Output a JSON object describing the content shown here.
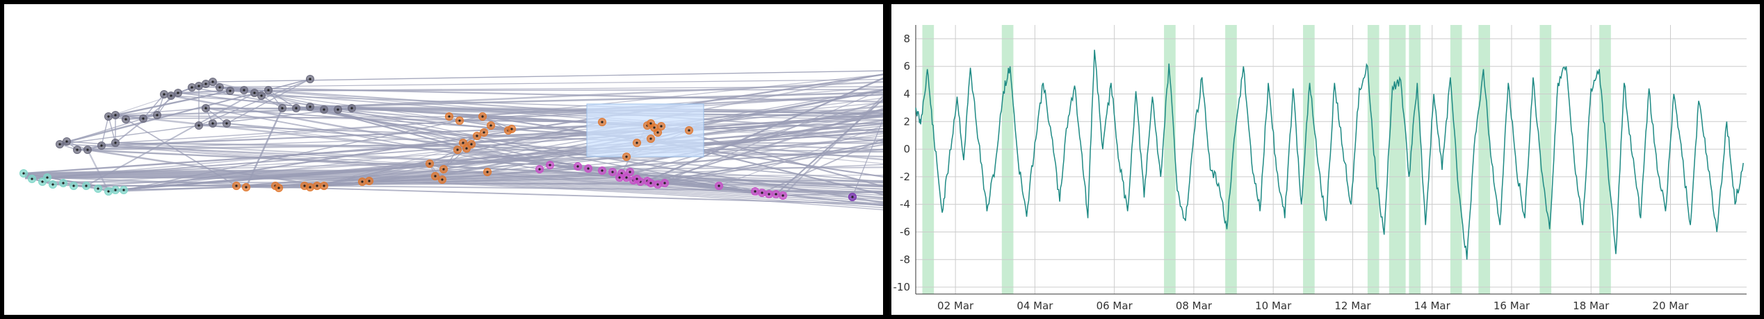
{
  "chart_data": [
    {
      "type": "scatter",
      "title": "",
      "axes": false,
      "edge_color": "#9a9db5",
      "clusters": [
        {
          "color": "#7fd6c8",
          "points": [
            [
              28,
              244
            ],
            [
              40,
              252
            ],
            [
              55,
              256
            ],
            [
              70,
              260
            ],
            [
              85,
              258
            ],
            [
              100,
              262
            ],
            [
              118,
              262
            ],
            [
              135,
              266
            ],
            [
              150,
              270
            ],
            [
              160,
              268
            ],
            [
              172,
              268
            ],
            [
              62,
              250
            ]
          ]
        },
        {
          "color": "#6b6b7e",
          "points": [
            [
              80,
              202
            ],
            [
              90,
              198
            ],
            [
              105,
              210
            ],
            [
              120,
              210
            ],
            [
              140,
              204
            ],
            [
              160,
              200
            ],
            [
              150,
              162
            ],
            [
              160,
              160
            ],
            [
              175,
              166
            ],
            [
              200,
              165
            ],
            [
              220,
              160
            ],
            [
              230,
              130
            ],
            [
              240,
              132
            ],
            [
              250,
              128
            ],
            [
              270,
              120
            ],
            [
              280,
              118
            ],
            [
              290,
              115
            ],
            [
              300,
              112
            ],
            [
              310,
              120
            ],
            [
              325,
              125
            ],
            [
              345,
              124
            ],
            [
              360,
              128
            ],
            [
              370,
              132
            ],
            [
              380,
              124
            ],
            [
              400,
              150
            ],
            [
              420,
              150
            ],
            [
              440,
              148
            ],
            [
              460,
              152
            ],
            [
              480,
              152
            ],
            [
              500,
              150
            ],
            [
              290,
              150
            ],
            [
              300,
              172
            ],
            [
              320,
              172
            ],
            [
              280,
              175
            ],
            [
              440,
              108
            ]
          ]
        },
        {
          "color": "#e0772e",
          "points": [
            [
              334,
              262
            ],
            [
              348,
              264
            ],
            [
              390,
              262
            ],
            [
              395,
              265
            ],
            [
              432,
              262
            ],
            [
              440,
              264
            ],
            [
              450,
              262
            ],
            [
              460,
              262
            ],
            [
              515,
              256
            ],
            [
              525,
              255
            ],
            [
              620,
              248
            ],
            [
              630,
              253
            ],
            [
              612,
              230
            ],
            [
              632,
              238
            ],
            [
              652,
              210
            ],
            [
              665,
              208
            ],
            [
              672,
              202
            ],
            [
              680,
              190
            ],
            [
              660,
              200
            ],
            [
              690,
              185
            ],
            [
              700,
              175
            ],
            [
              725,
              182
            ],
            [
              730,
              180
            ],
            [
              688,
              162
            ],
            [
              655,
              168
            ],
            [
              640,
              162
            ],
            [
              860,
              170
            ],
            [
              925,
              175
            ],
            [
              930,
              172
            ],
            [
              935,
              178
            ],
            [
              945,
              176
            ],
            [
              940,
              185
            ],
            [
              930,
              194
            ],
            [
              910,
              200
            ],
            [
              985,
              182
            ],
            [
              895,
              220
            ],
            [
              695,
              242
            ]
          ]
        },
        {
          "color": "#c84ec8",
          "points": [
            [
              770,
              238
            ],
            [
              785,
              232
            ],
            [
              825,
              234
            ],
            [
              840,
              237
            ],
            [
              860,
              240
            ],
            [
              875,
              242
            ],
            [
              888,
              244
            ],
            [
              895,
              250
            ],
            [
              905,
              254
            ],
            [
              915,
              256
            ],
            [
              925,
              255
            ],
            [
              930,
              258
            ],
            [
              940,
              260
            ],
            [
              950,
              258
            ],
            [
              910,
              252
            ],
            [
              885,
              250
            ],
            [
              900,
              242
            ],
            [
              1028,
              262
            ],
            [
              1080,
              270
            ],
            [
              1090,
              272
            ],
            [
              1100,
              274
            ],
            [
              1110,
              274
            ],
            [
              1120,
              276
            ]
          ]
        },
        {
          "color": "#7a2fb0",
          "points": [
            [
              1220,
              278
            ]
          ]
        }
      ],
      "highlight_region": {
        "color": "#cfe3ff"
      }
    },
    {
      "type": "line",
      "title": "",
      "xlabel": "",
      "ylabel": "",
      "x_range": [
        "2023-03-01",
        "2023-03-21T22:00"
      ],
      "ylim": [
        -10.5,
        9
      ],
      "yticks": [
        -10,
        -8,
        -6,
        -4,
        -2,
        0,
        2,
        4,
        6,
        8
      ],
      "xticks": [
        {
          "date": "2023-03-02",
          "label": "02 Mar"
        },
        {
          "date": "2023-03-04",
          "label": "04 Mar"
        },
        {
          "date": "2023-03-06",
          "label": "06 Mar"
        },
        {
          "date": "2023-03-08",
          "label": "08 Mar"
        },
        {
          "date": "2023-03-10",
          "label": "10 Mar"
        },
        {
          "date": "2023-03-12",
          "label": "12 Mar"
        },
        {
          "date": "2023-03-14",
          "label": "14 Mar"
        },
        {
          "date": "2023-03-16",
          "label": "16 Mar"
        },
        {
          "date": "2023-03-18",
          "label": "18 Mar"
        },
        {
          "date": "2023-03-20",
          "label": "20 Mar"
        }
      ],
      "grid": true,
      "line_color": "#1e8a84",
      "band_color": "#c8ecd2",
      "highlight_bands": [
        [
          "2023-03-01T04:00",
          "2023-03-01T11:00"
        ],
        [
          "2023-03-03T04:00",
          "2023-03-03T11:00"
        ],
        [
          "2023-03-07T06:00",
          "2023-03-07T13:00"
        ],
        [
          "2023-03-08T19:00",
          "2023-03-09T02:00"
        ],
        [
          "2023-03-10T18:00",
          "2023-03-11T01:00"
        ],
        [
          "2023-03-12T09:00",
          "2023-03-12T16:00"
        ],
        [
          "2023-03-12T22:00",
          "2023-03-13T08:00"
        ],
        [
          "2023-03-13T10:00",
          "2023-03-13T17:00"
        ],
        [
          "2023-03-14T11:00",
          "2023-03-14T18:00"
        ],
        [
          "2023-03-15T04:00",
          "2023-03-15T11:00"
        ],
        [
          "2023-03-16T17:00",
          "2023-03-17T00:00"
        ],
        [
          "2023-03-18T05:00",
          "2023-03-18T12:00"
        ]
      ],
      "series": [
        {
          "values": [
            [
              "2023-03-01T00:00",
              3.0
            ],
            [
              "2023-03-01T03:00",
              1.8
            ],
            [
              "2023-03-01T07:00",
              5.8
            ],
            [
              "2023-03-01T11:00",
              0.8
            ],
            [
              "2023-03-01T16:00",
              -4.6
            ],
            [
              "2023-03-01T20:00",
              -1.0
            ],
            [
              "2023-03-02T01:00",
              3.8
            ],
            [
              "2023-03-02T05:00",
              -0.8
            ],
            [
              "2023-03-02T09:00",
              5.9
            ],
            [
              "2023-03-02T14:00",
              0.5
            ],
            [
              "2023-03-02T19:00",
              -4.5
            ],
            [
              "2023-03-03T00:00",
              -1.2
            ],
            [
              "2023-03-03T05:00",
              4.2
            ],
            [
              "2023-03-03T09:00",
              6.0
            ],
            [
              "2023-03-03T14:00",
              -1.0
            ],
            [
              "2023-03-03T19:00",
              -4.9
            ],
            [
              "2023-03-04T00:00",
              0.5
            ],
            [
              "2023-03-04T05:00",
              4.8
            ],
            [
              "2023-03-04T10:00",
              1.0
            ],
            [
              "2023-03-04T15:00",
              -3.8
            ],
            [
              "2023-03-04T19:00",
              1.5
            ],
            [
              "2023-03-05T00:00",
              4.6
            ],
            [
              "2023-03-05T04:00",
              0.0
            ],
            [
              "2023-03-05T08:00",
              -5.0
            ],
            [
              "2023-03-05T12:00",
              7.2
            ],
            [
              "2023-03-05T17:00",
              0.0
            ],
            [
              "2023-03-05T22:00",
              4.8
            ],
            [
              "2023-03-06T03:00",
              -1.0
            ],
            [
              "2023-03-06T08:00",
              -4.5
            ],
            [
              "2023-03-06T13:00",
              4.2
            ],
            [
              "2023-03-06T18:00",
              -3.5
            ],
            [
              "2023-03-06T23:00",
              3.8
            ],
            [
              "2023-03-07T04:00",
              -2.0
            ],
            [
              "2023-03-07T09:00",
              6.2
            ],
            [
              "2023-03-07T14:00",
              -3.0
            ],
            [
              "2023-03-07T19:00",
              -5.2
            ],
            [
              "2023-03-08T00:00",
              1.0
            ],
            [
              "2023-03-08T05:00",
              5.2
            ],
            [
              "2023-03-08T10:00",
              -1.5
            ],
            [
              "2023-03-08T15:00",
              -2.5
            ],
            [
              "2023-03-08T20:00",
              -5.8
            ],
            [
              "2023-03-09T01:00",
              1.2
            ],
            [
              "2023-03-09T06:00",
              6.0
            ],
            [
              "2023-03-09T11:00",
              -1.0
            ],
            [
              "2023-03-09T16:00",
              -4.5
            ],
            [
              "2023-03-09T21:00",
              4.8
            ],
            [
              "2023-03-10T02:00",
              -1.5
            ],
            [
              "2023-03-10T07:00",
              -5.0
            ],
            [
              "2023-03-10T12:00",
              4.4
            ],
            [
              "2023-03-10T17:00",
              -4.0
            ],
            [
              "2023-03-10T22:00",
              4.8
            ],
            [
              "2023-03-11T03:00",
              -1.0
            ],
            [
              "2023-03-11T08:00",
              -5.2
            ],
            [
              "2023-03-11T13:00",
              4.8
            ],
            [
              "2023-03-11T18:00",
              0.0
            ],
            [
              "2023-03-11T23:00",
              -4.0
            ],
            [
              "2023-03-12T04:00",
              4.4
            ],
            [
              "2023-03-12T09:00",
              6.0
            ],
            [
              "2023-03-12T14:00",
              -2.0
            ],
            [
              "2023-03-12T19:00",
              -6.2
            ],
            [
              "2023-03-13T00:00",
              4.5
            ],
            [
              "2023-03-13T05:00",
              5.0
            ],
            [
              "2023-03-13T10:00",
              -2.0
            ],
            [
              "2023-03-13T15:00",
              4.8
            ],
            [
              "2023-03-13T20:00",
              -5.5
            ],
            [
              "2023-03-14T01:00",
              4.0
            ],
            [
              "2023-03-14T06:00",
              -1.5
            ],
            [
              "2023-03-14T11:00",
              5.2
            ],
            [
              "2023-03-14T16:00",
              -3.0
            ],
            [
              "2023-03-14T21:00",
              -8.0
            ],
            [
              "2023-03-15T02:00",
              1.0
            ],
            [
              "2023-03-15T07:00",
              5.8
            ],
            [
              "2023-03-15T12:00",
              -1.0
            ],
            [
              "2023-03-15T17:00",
              -5.5
            ],
            [
              "2023-03-15T22:00",
              4.8
            ],
            [
              "2023-03-16T03:00",
              -1.5
            ],
            [
              "2023-03-16T08:00",
              -5.0
            ],
            [
              "2023-03-16T13:00",
              5.2
            ],
            [
              "2023-03-16T18:00",
              -1.5
            ],
            [
              "2023-03-16T23:00",
              -5.8
            ],
            [
              "2023-03-17T04:00",
              4.8
            ],
            [
              "2023-03-17T09:00",
              6.0
            ],
            [
              "2023-03-17T14:00",
              -1.0
            ],
            [
              "2023-03-17T19:00",
              -5.5
            ],
            [
              "2023-03-18T00:00",
              4.4
            ],
            [
              "2023-03-18T05:00",
              5.8
            ],
            [
              "2023-03-18T10:00",
              -1.0
            ],
            [
              "2023-03-18T15:00",
              -7.6
            ],
            [
              "2023-03-18T20:00",
              4.8
            ],
            [
              "2023-03-19T01:00",
              -0.5
            ],
            [
              "2023-03-19T06:00",
              -5.0
            ],
            [
              "2023-03-19T11:00",
              4.4
            ],
            [
              "2023-03-19T16:00",
              -1.5
            ],
            [
              "2023-03-19T21:00",
              -4.5
            ],
            [
              "2023-03-20T02:00",
              4.0
            ],
            [
              "2023-03-20T07:00",
              -0.5
            ],
            [
              "2023-03-20T12:00",
              -5.5
            ],
            [
              "2023-03-20T17:00",
              3.5
            ],
            [
              "2023-03-20T22:00",
              -0.5
            ],
            [
              "2023-03-21T04:00",
              -6.0
            ],
            [
              "2023-03-21T10:00",
              2.0
            ],
            [
              "2023-03-21T15:00",
              -4.0
            ],
            [
              "2023-03-21T20:00",
              -1.0
            ]
          ]
        }
      ]
    }
  ]
}
